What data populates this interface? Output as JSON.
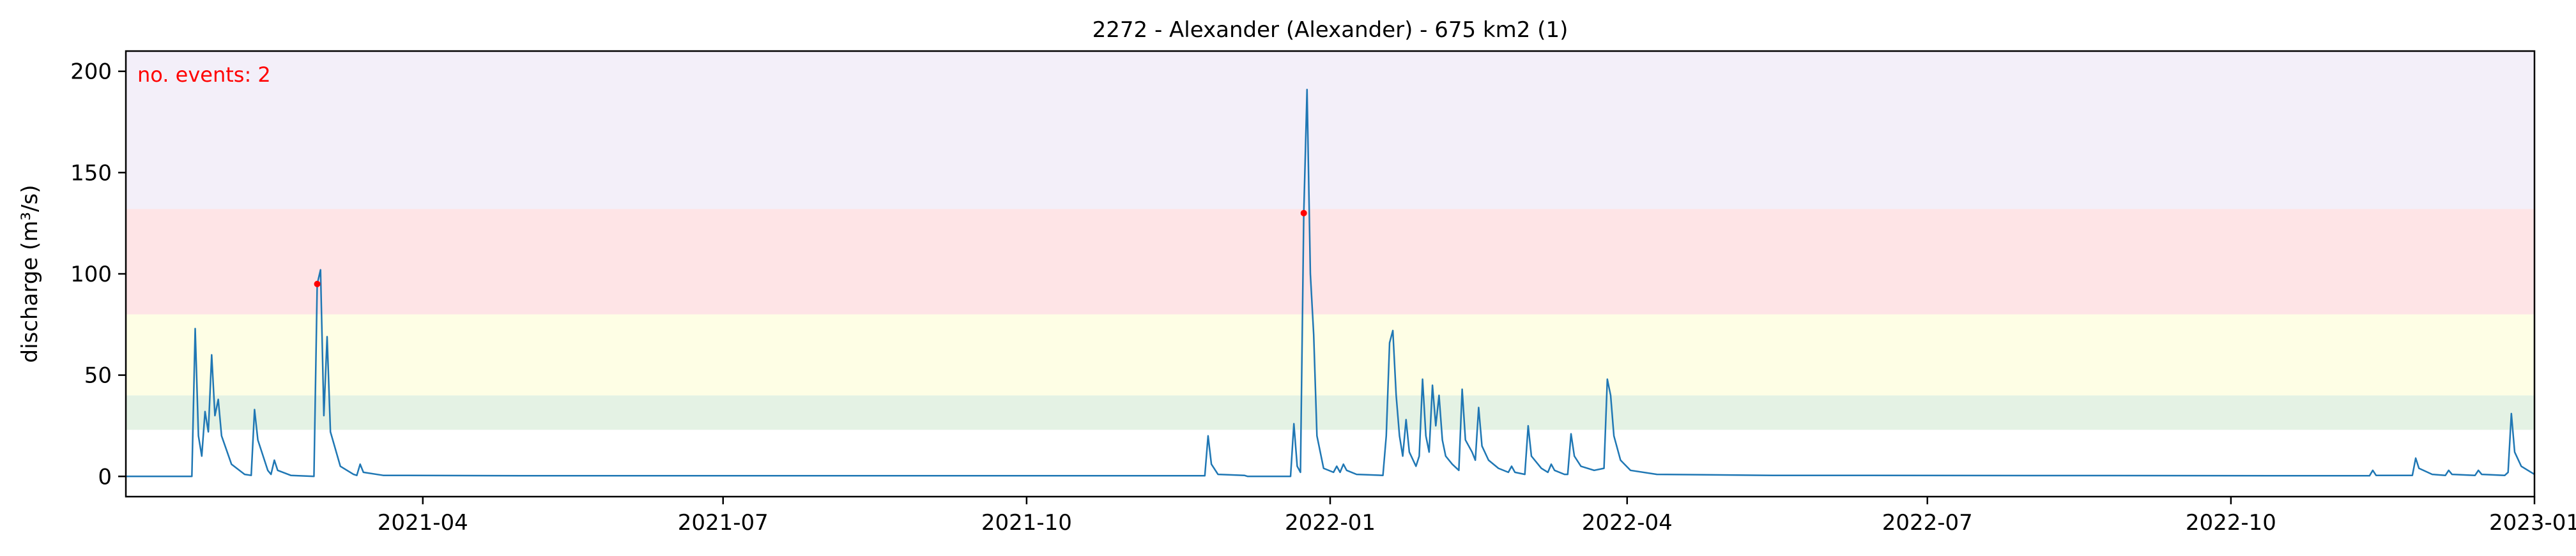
{
  "chart_data": {
    "type": "line",
    "title": "2272 - Alexander (Alexander) - 675 km2 (1)",
    "xlabel": "",
    "ylabel": "discharge (m³/s)",
    "xlim": [
      "2021-01-01",
      "2023-01-01"
    ],
    "ylim": [
      -10,
      210
    ],
    "grid": false,
    "x_ticks": [
      "2021-04-01",
      "2021-07-01",
      "2021-10-01",
      "2022-01-01",
      "2022-04-01",
      "2022-07-01",
      "2022-10-01",
      "2023-01-01"
    ],
    "x_tick_labels": [
      "2021-04",
      "2021-07",
      "2021-10",
      "2022-01",
      "2022-04",
      "2022-07",
      "2022-10",
      "2023-01"
    ],
    "y_ticks": [
      0,
      50,
      100,
      150,
      200
    ],
    "y_tick_labels": [
      "0",
      "50",
      "100",
      "150",
      "200"
    ],
    "bands": [
      {
        "from": 23,
        "to": 40,
        "color": "#e4f2e4"
      },
      {
        "from": 40,
        "to": 80,
        "color": "#fefee5"
      },
      {
        "from": 80,
        "to": 132,
        "color": "#fee4e6"
      },
      {
        "from": 132,
        "to": 210,
        "color": "#f3eff9"
      }
    ],
    "series": [
      {
        "color": "#1f77b4",
        "points": [
          [
            "2021-01-01",
            0
          ],
          [
            "2021-01-21",
            0
          ],
          [
            "2021-01-22",
            73
          ],
          [
            "2021-01-23",
            20
          ],
          [
            "2021-01-24",
            10
          ],
          [
            "2021-01-25",
            32
          ],
          [
            "2021-01-26",
            22
          ],
          [
            "2021-01-27",
            60
          ],
          [
            "2021-01-28",
            30
          ],
          [
            "2021-01-29",
            38
          ],
          [
            "2021-01-30",
            20
          ],
          [
            "2021-02-02",
            6
          ],
          [
            "2021-02-06",
            1
          ],
          [
            "2021-02-08",
            0.5
          ],
          [
            "2021-02-09",
            33
          ],
          [
            "2021-02-10",
            18
          ],
          [
            "2021-02-13",
            3
          ],
          [
            "2021-02-14",
            1
          ],
          [
            "2021-02-15",
            8
          ],
          [
            "2021-02-16",
            3
          ],
          [
            "2021-02-20",
            0.5
          ],
          [
            "2021-02-27",
            0
          ],
          [
            "2021-02-28",
            95
          ],
          [
            "2021-03-01",
            102
          ],
          [
            "2021-03-02",
            30
          ],
          [
            "2021-03-03",
            69
          ],
          [
            "2021-03-04",
            22
          ],
          [
            "2021-03-07",
            5
          ],
          [
            "2021-03-11",
            1
          ],
          [
            "2021-03-12",
            0.5
          ],
          [
            "2021-03-13",
            6
          ],
          [
            "2021-03-14",
            2
          ],
          [
            "2021-03-20",
            0.5
          ],
          [
            "2021-05-01",
            0.3
          ],
          [
            "2021-11-24",
            0.3
          ],
          [
            "2021-11-25",
            20
          ],
          [
            "2021-11-26",
            6
          ],
          [
            "2021-11-28",
            1
          ],
          [
            "2021-12-06",
            0.5
          ],
          [
            "2021-12-07",
            0
          ],
          [
            "2021-12-20",
            0
          ],
          [
            "2021-12-21",
            26
          ],
          [
            "2021-12-22",
            5
          ],
          [
            "2021-12-23",
            2
          ],
          [
            "2021-12-24",
            130
          ],
          [
            "2021-12-25",
            191
          ],
          [
            "2021-12-26",
            100
          ],
          [
            "2021-12-27",
            70
          ],
          [
            "2021-12-28",
            20
          ],
          [
            "2021-12-30",
            4
          ],
          [
            "2022-01-02",
            2
          ],
          [
            "2022-01-03",
            5
          ],
          [
            "2022-01-04",
            2
          ],
          [
            "2022-01-05",
            6
          ],
          [
            "2022-01-06",
            3
          ],
          [
            "2022-01-09",
            1
          ],
          [
            "2022-01-17",
            0.5
          ],
          [
            "2022-01-18",
            20
          ],
          [
            "2022-01-19",
            66
          ],
          [
            "2022-01-20",
            72
          ],
          [
            "2022-01-21",
            40
          ],
          [
            "2022-01-22",
            20
          ],
          [
            "2022-01-23",
            10
          ],
          [
            "2022-01-24",
            28
          ],
          [
            "2022-01-25",
            12
          ],
          [
            "2022-01-27",
            5
          ],
          [
            "2022-01-28",
            10
          ],
          [
            "2022-01-29",
            48
          ],
          [
            "2022-01-30",
            20
          ],
          [
            "2022-01-31",
            12
          ],
          [
            "2022-02-01",
            45
          ],
          [
            "2022-02-02",
            25
          ],
          [
            "2022-02-03",
            40
          ],
          [
            "2022-02-04",
            18
          ],
          [
            "2022-02-05",
            10
          ],
          [
            "2022-02-07",
            6
          ],
          [
            "2022-02-09",
            3
          ],
          [
            "2022-02-10",
            43
          ],
          [
            "2022-02-11",
            18
          ],
          [
            "2022-02-13",
            12
          ],
          [
            "2022-02-14",
            8
          ],
          [
            "2022-02-15",
            34
          ],
          [
            "2022-02-16",
            15
          ],
          [
            "2022-02-18",
            8
          ],
          [
            "2022-02-21",
            4
          ],
          [
            "2022-02-24",
            2
          ],
          [
            "2022-02-25",
            5
          ],
          [
            "2022-02-26",
            2
          ],
          [
            "2022-03-01",
            1
          ],
          [
            "2022-03-02",
            25
          ],
          [
            "2022-03-03",
            10
          ],
          [
            "2022-03-06",
            4
          ],
          [
            "2022-03-08",
            2
          ],
          [
            "2022-03-09",
            6
          ],
          [
            "2022-03-10",
            3
          ],
          [
            "2022-03-13",
            1
          ],
          [
            "2022-03-14",
            1
          ],
          [
            "2022-03-15",
            21
          ],
          [
            "2022-03-16",
            10
          ],
          [
            "2022-03-18",
            5
          ],
          [
            "2022-03-22",
            3
          ],
          [
            "2022-03-25",
            4
          ],
          [
            "2022-03-26",
            48
          ],
          [
            "2022-03-27",
            40
          ],
          [
            "2022-03-28",
            20
          ],
          [
            "2022-03-30",
            8
          ],
          [
            "2022-04-02",
            3
          ],
          [
            "2022-04-10",
            1
          ],
          [
            "2022-05-15",
            0.5
          ],
          [
            "2022-11-12",
            0.3
          ],
          [
            "2022-11-13",
            3
          ],
          [
            "2022-11-14",
            0.5
          ],
          [
            "2022-11-25",
            0.5
          ],
          [
            "2022-11-26",
            9
          ],
          [
            "2022-11-27",
            4
          ],
          [
            "2022-12-01",
            1
          ],
          [
            "2022-12-05",
            0.5
          ],
          [
            "2022-12-06",
            3
          ],
          [
            "2022-12-07",
            1
          ],
          [
            "2022-12-14",
            0.5
          ],
          [
            "2022-12-15",
            3
          ],
          [
            "2022-12-16",
            1
          ],
          [
            "2022-12-23",
            0.5
          ],
          [
            "2022-12-24",
            2
          ],
          [
            "2022-12-25",
            31
          ],
          [
            "2022-12-26",
            12
          ],
          [
            "2022-12-28",
            5
          ],
          [
            "2022-12-31",
            2
          ],
          [
            "2023-01-01",
            1
          ]
        ]
      }
    ],
    "events": [
      {
        "x": "2021-02-28",
        "y": 95,
        "color": "#ff0000"
      },
      {
        "x": "2021-12-24",
        "y": 130,
        "color": "#ff0000"
      }
    ],
    "annotation": {
      "text": "no. events: 2",
      "color": "#ff0000"
    }
  }
}
